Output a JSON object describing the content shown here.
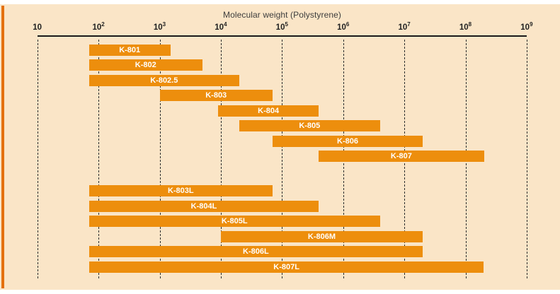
{
  "colors": {
    "panel_background": "#FAE5C7",
    "accent_stripe": "#E4700E",
    "bar": "#ED8E0D",
    "axis": "#1a1a1a",
    "gridline": "#2e2e2e",
    "title_text": "#3d3d3d",
    "bar_label_text": "#ffffff"
  },
  "chart_data": {
    "type": "bar",
    "orientation": "horizontal-range",
    "title": "Molecular weight (Polystyrene)",
    "x_axis": {
      "scale": "log10",
      "min": 10,
      "max": 1000000000,
      "gridlines": "dashed-vertical",
      "ticks": [
        {
          "base": "10",
          "exp": ""
        },
        {
          "base": "10",
          "exp": "2"
        },
        {
          "base": "10",
          "exp": "3"
        },
        {
          "base": "10",
          "exp": "4"
        },
        {
          "base": "10",
          "exp": "5"
        },
        {
          "base": "10",
          "exp": "6"
        },
        {
          "base": "10",
          "exp": "7"
        },
        {
          "base": "10",
          "exp": "8"
        },
        {
          "base": "10",
          "exp": "9"
        }
      ]
    },
    "bar_groups": [
      [
        {
          "label": "K-801",
          "min": 70,
          "max": 1500
        },
        {
          "label": "K-802",
          "min": 70,
          "max": 5000
        },
        {
          "label": "K-802.5",
          "min": 70,
          "max": 20000
        },
        {
          "label": "K-803",
          "min": 1000,
          "max": 70000
        },
        {
          "label": "K-804",
          "min": 9000,
          "max": 400000
        },
        {
          "label": "K-805",
          "min": 20000,
          "max": 4000000
        },
        {
          "label": "K-806",
          "min": 70000,
          "max": 20000000
        },
        {
          "label": "K-807",
          "min": 400000,
          "max": 200000000
        }
      ],
      [
        {
          "label": "K-803L",
          "min": 70,
          "max": 70000
        },
        {
          "label": "K-804L",
          "min": 70,
          "max": 400000
        },
        {
          "label": "K-805L",
          "min": 70,
          "max": 4000000
        },
        {
          "label": "K-806M",
          "min": 10000,
          "max": 20000000
        },
        {
          "label": "K-806L",
          "min": 70,
          "max": 20000000
        },
        {
          "label": "K-807L",
          "min": 70,
          "max": 200000000
        }
      ]
    ]
  }
}
